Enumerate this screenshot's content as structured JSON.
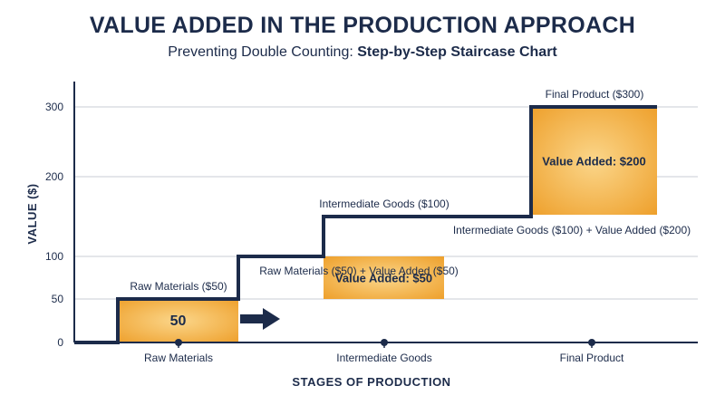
{
  "header": {
    "title": "VALUE ADDED IN THE PRODUCTION APPROACH",
    "subtitle_lead": "Preventing Double Counting: ",
    "subtitle_bold": "Step-by-Step Staircase Chart"
  },
  "colors": {
    "navy": "#1c2b4a",
    "orange": "#f2a533",
    "orange_light": "#f8c874",
    "grid": "#c9cdd4"
  },
  "chart_data": {
    "type": "staircase",
    "xlabel": "STAGES OF PRODUCTION",
    "ylabel": "VALUE ($)",
    "ylim": [
      0,
      300
    ],
    "yticks": [
      0,
      50,
      100,
      200,
      300
    ],
    "grid": true,
    "categories": [
      "Raw Materials",
      "Intermediate Goods",
      "Final Product"
    ],
    "stages": [
      {
        "name": "Raw Materials",
        "start": 0,
        "value_added": 50,
        "cumulative": 50,
        "label": "Raw Materials ($50)",
        "bar_label": "50",
        "annotation": "Raw Materials ($50) + Value Added ($50)"
      },
      {
        "name": "Intermediate Goods",
        "start": 50,
        "value_added": 50,
        "cumulative": 100,
        "label": "Intermediate Goods ($100)",
        "bar_label": "Value Added: $50",
        "annotation": "Intermediate Goods ($100) + Value Added ($200)"
      },
      {
        "name": "Final Product",
        "start": 100,
        "value_added": 200,
        "cumulative": 300,
        "label": "Final Product ($300)",
        "bar_label": "Value Added: $200",
        "annotation": ""
      }
    ]
  }
}
